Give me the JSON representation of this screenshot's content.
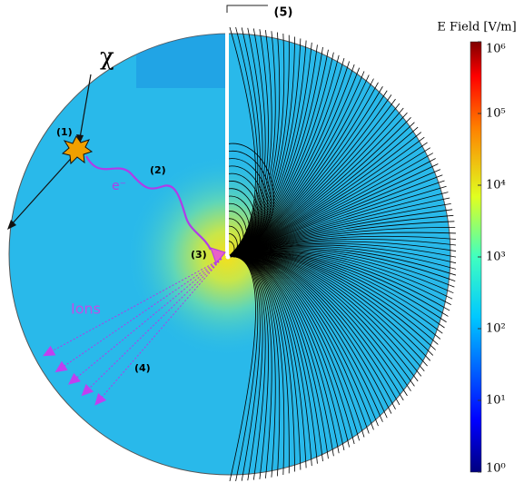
{
  "figure": {
    "callout": "(5)",
    "annotations": {
      "particle": "χ",
      "step1": "(1)",
      "step2": "(2)",
      "electron": "e⁻",
      "step3": "(3)",
      "ions": "Ions",
      "step4": "(4)"
    },
    "colorbar": {
      "title": "E Field [V/m]",
      "scale": "log",
      "lim": [
        1,
        1000000
      ],
      "ticks": [
        {
          "value": 1,
          "label": "10⁰"
        },
        {
          "value": 10,
          "label": "10¹"
        },
        {
          "value": 100,
          "label": "10²"
        },
        {
          "value": 1000,
          "label": "10³"
        },
        {
          "value": 10000,
          "label": "10⁴"
        },
        {
          "value": 100000,
          "label": "10⁵"
        },
        {
          "value": 1000000,
          "label": "10⁶"
        }
      ]
    }
  }
}
